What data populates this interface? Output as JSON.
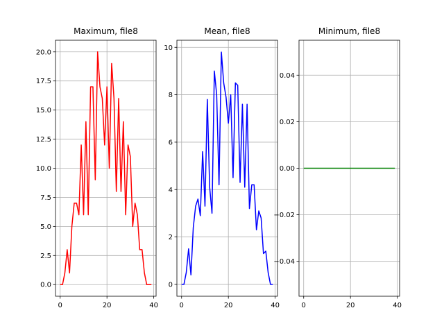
{
  "chart_data": [
    {
      "type": "line",
      "title": "Maximum, file8",
      "xlabel": "",
      "ylabel": "",
      "xlim": [
        -2,
        41
      ],
      "ylim": [
        -1,
        21
      ],
      "xticks": [
        0,
        20,
        40
      ],
      "xtick_labels": [
        "0",
        "20",
        "40"
      ],
      "yticks": [
        0,
        2.5,
        5,
        7.5,
        10,
        12.5,
        15,
        17.5,
        20
      ],
      "ytick_labels": [
        "0.0",
        "2.5",
        "5.0",
        "7.5",
        "10.0",
        "12.5",
        "15.0",
        "17.5",
        "20.0"
      ],
      "grid": true,
      "color": "#ff0000",
      "series": [
        {
          "x": [
            0,
            1,
            2,
            3,
            4,
            5,
            6,
            7,
            8,
            9,
            10,
            11,
            12,
            13,
            14,
            15,
            16,
            17,
            18,
            19,
            20,
            21,
            22,
            23,
            24,
            25,
            26,
            27,
            28,
            29,
            30,
            31,
            32,
            33,
            34,
            35,
            36,
            37,
            38,
            39
          ],
          "values": [
            0,
            0,
            1,
            3,
            1,
            5,
            7,
            7,
            6,
            12,
            6,
            14,
            6,
            17,
            17,
            9,
            20,
            17,
            16,
            12,
            17,
            10,
            19,
            16,
            8,
            16,
            8,
            14,
            6,
            12,
            11,
            5,
            7,
            6,
            3,
            3,
            1,
            0,
            0,
            0
          ]
        }
      ]
    },
    {
      "type": "line",
      "title": "Mean, file8",
      "xlabel": "",
      "ylabel": "",
      "xlim": [
        -2,
        41
      ],
      "ylim": [
        -0.5,
        10.3
      ],
      "xticks": [
        0,
        20,
        40
      ],
      "xtick_labels": [
        "0",
        "20",
        "40"
      ],
      "yticks": [
        0,
        2,
        4,
        6,
        8,
        10
      ],
      "ytick_labels": [
        "0",
        "2",
        "4",
        "6",
        "8",
        "10"
      ],
      "grid": true,
      "color": "#0000ff",
      "series": [
        {
          "x": [
            0,
            1,
            2,
            3,
            4,
            5,
            6,
            7,
            8,
            9,
            10,
            11,
            12,
            13,
            14,
            15,
            16,
            17,
            18,
            19,
            20,
            21,
            22,
            23,
            24,
            25,
            26,
            27,
            28,
            29,
            30,
            31,
            32,
            33,
            34,
            35,
            36,
            37,
            38,
            39
          ],
          "values": [
            0,
            0,
            0.5,
            1.5,
            0.4,
            2.4,
            3.3,
            3.6,
            2.9,
            5.6,
            3.3,
            7.8,
            4.1,
            3.0,
            9.0,
            8.0,
            4.2,
            9.8,
            8.5,
            7.9,
            6.8,
            8.0,
            4.5,
            8.5,
            8.4,
            4.3,
            7.6,
            4.1,
            7.6,
            3.2,
            4.2,
            4.2,
            2.3,
            3.1,
            2.8,
            1.3,
            1.4,
            0.5,
            0,
            0
          ]
        }
      ]
    },
    {
      "type": "line",
      "title": "Minimum, file8",
      "xlabel": "",
      "ylabel": "",
      "xlim": [
        -2,
        41
      ],
      "ylim": [
        -0.055,
        0.055
      ],
      "xticks": [
        0,
        20,
        40
      ],
      "xtick_labels": [
        "0",
        "20",
        "40"
      ],
      "yticks": [
        -0.04,
        -0.02,
        0,
        0.02,
        0.04
      ],
      "ytick_labels": [
        "−0.04",
        "−0.02",
        "0.00",
        "0.02",
        "0.04"
      ],
      "grid": true,
      "color": "#008000",
      "series": [
        {
          "x": [
            0,
            1,
            2,
            3,
            4,
            5,
            6,
            7,
            8,
            9,
            10,
            11,
            12,
            13,
            14,
            15,
            16,
            17,
            18,
            19,
            20,
            21,
            22,
            23,
            24,
            25,
            26,
            27,
            28,
            29,
            30,
            31,
            32,
            33,
            34,
            35,
            36,
            37,
            38,
            39
          ],
          "values": [
            0,
            0,
            0,
            0,
            0,
            0,
            0,
            0,
            0,
            0,
            0,
            0,
            0,
            0,
            0,
            0,
            0,
            0,
            0,
            0,
            0,
            0,
            0,
            0,
            0,
            0,
            0,
            0,
            0,
            0,
            0,
            0,
            0,
            0,
            0,
            0,
            0,
            0,
            0,
            0
          ]
        }
      ]
    }
  ]
}
